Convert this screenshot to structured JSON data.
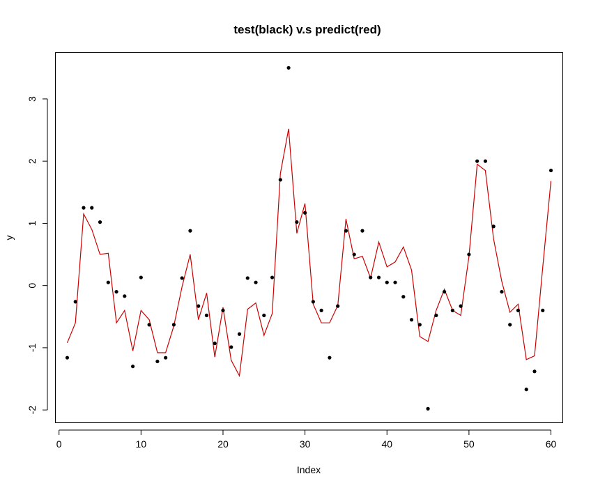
{
  "chart_data": {
    "type": "scatter",
    "title": "test(black) v.s predict(red)",
    "xlabel": "Index",
    "ylabel": "y",
    "xlim": [
      -0.4,
      61.4
    ],
    "ylim": [
      -2.2,
      3.75
    ],
    "x_ticks": [
      0,
      10,
      20,
      30,
      40,
      50,
      60
    ],
    "y_ticks": [
      -2,
      -1,
      0,
      1,
      2,
      3
    ],
    "grid": false,
    "legend": "none",
    "series": [
      {
        "role": "test",
        "style": "points",
        "color": "#000000",
        "x": [
          1,
          2,
          3,
          4,
          5,
          6,
          7,
          8,
          9,
          10,
          11,
          12,
          13,
          14,
          15,
          16,
          17,
          18,
          19,
          20,
          21,
          22,
          23,
          24,
          25,
          26,
          27,
          28,
          29,
          30,
          31,
          32,
          33,
          34,
          35,
          36,
          37,
          38,
          39,
          40,
          41,
          42,
          43,
          44,
          45,
          46,
          47,
          48,
          49,
          50,
          51,
          52,
          53,
          54,
          55,
          56,
          57,
          58,
          59,
          60
        ],
        "values": [
          -1.16,
          -0.26,
          1.25,
          1.25,
          1.02,
          0.05,
          -0.1,
          -0.17,
          -1.3,
          0.13,
          -0.63,
          -1.22,
          -1.16,
          -0.63,
          0.12,
          0.88,
          -0.33,
          -0.48,
          -0.93,
          -0.4,
          -0.99,
          -0.78,
          0.12,
          0.05,
          -0.48,
          0.13,
          1.7,
          3.5,
          1.02,
          1.17,
          -0.26,
          -0.4,
          -1.16,
          -0.33,
          0.88,
          0.5,
          0.88,
          0.13,
          0.13,
          0.05,
          0.05,
          -0.18,
          -0.55,
          -0.63,
          -1.98,
          -0.48,
          -0.1,
          -0.4,
          -0.33,
          0.5,
          2.0,
          2.0,
          0.95,
          -0.1,
          -0.63,
          -0.4,
          -1.67,
          -1.38,
          -0.4,
          1.85
        ]
      },
      {
        "role": "predict",
        "style": "line",
        "color": "#cc0000",
        "x": [
          1,
          2,
          3,
          4,
          5,
          6,
          7,
          8,
          9,
          10,
          11,
          12,
          13,
          14,
          15,
          16,
          17,
          18,
          19,
          20,
          21,
          22,
          23,
          24,
          25,
          26,
          27,
          28,
          29,
          30,
          31,
          32,
          33,
          34,
          35,
          36,
          37,
          38,
          39,
          40,
          41,
          42,
          43,
          44,
          45,
          46,
          47,
          48,
          49,
          50,
          51,
          52,
          53,
          54,
          55,
          56,
          57,
          58,
          59,
          60
        ],
        "values": [
          -0.92,
          -0.6,
          1.15,
          0.9,
          0.5,
          0.52,
          -0.6,
          -0.4,
          -1.05,
          -0.4,
          -0.55,
          -1.08,
          -1.08,
          -0.65,
          -0.02,
          0.5,
          -0.55,
          -0.12,
          -1.15,
          -0.35,
          -1.2,
          -1.45,
          -0.38,
          -0.28,
          -0.8,
          -0.45,
          1.8,
          2.52,
          0.84,
          1.32,
          -0.3,
          -0.6,
          -0.6,
          -0.32,
          1.07,
          0.43,
          0.47,
          0.12,
          0.7,
          0.3,
          0.38,
          0.62,
          0.25,
          -0.82,
          -0.9,
          -0.4,
          -0.06,
          -0.4,
          -0.48,
          0.47,
          1.95,
          1.85,
          0.75,
          0.07,
          -0.43,
          -0.3,
          -1.19,
          -1.13,
          0.3,
          1.68
        ]
      }
    ]
  }
}
